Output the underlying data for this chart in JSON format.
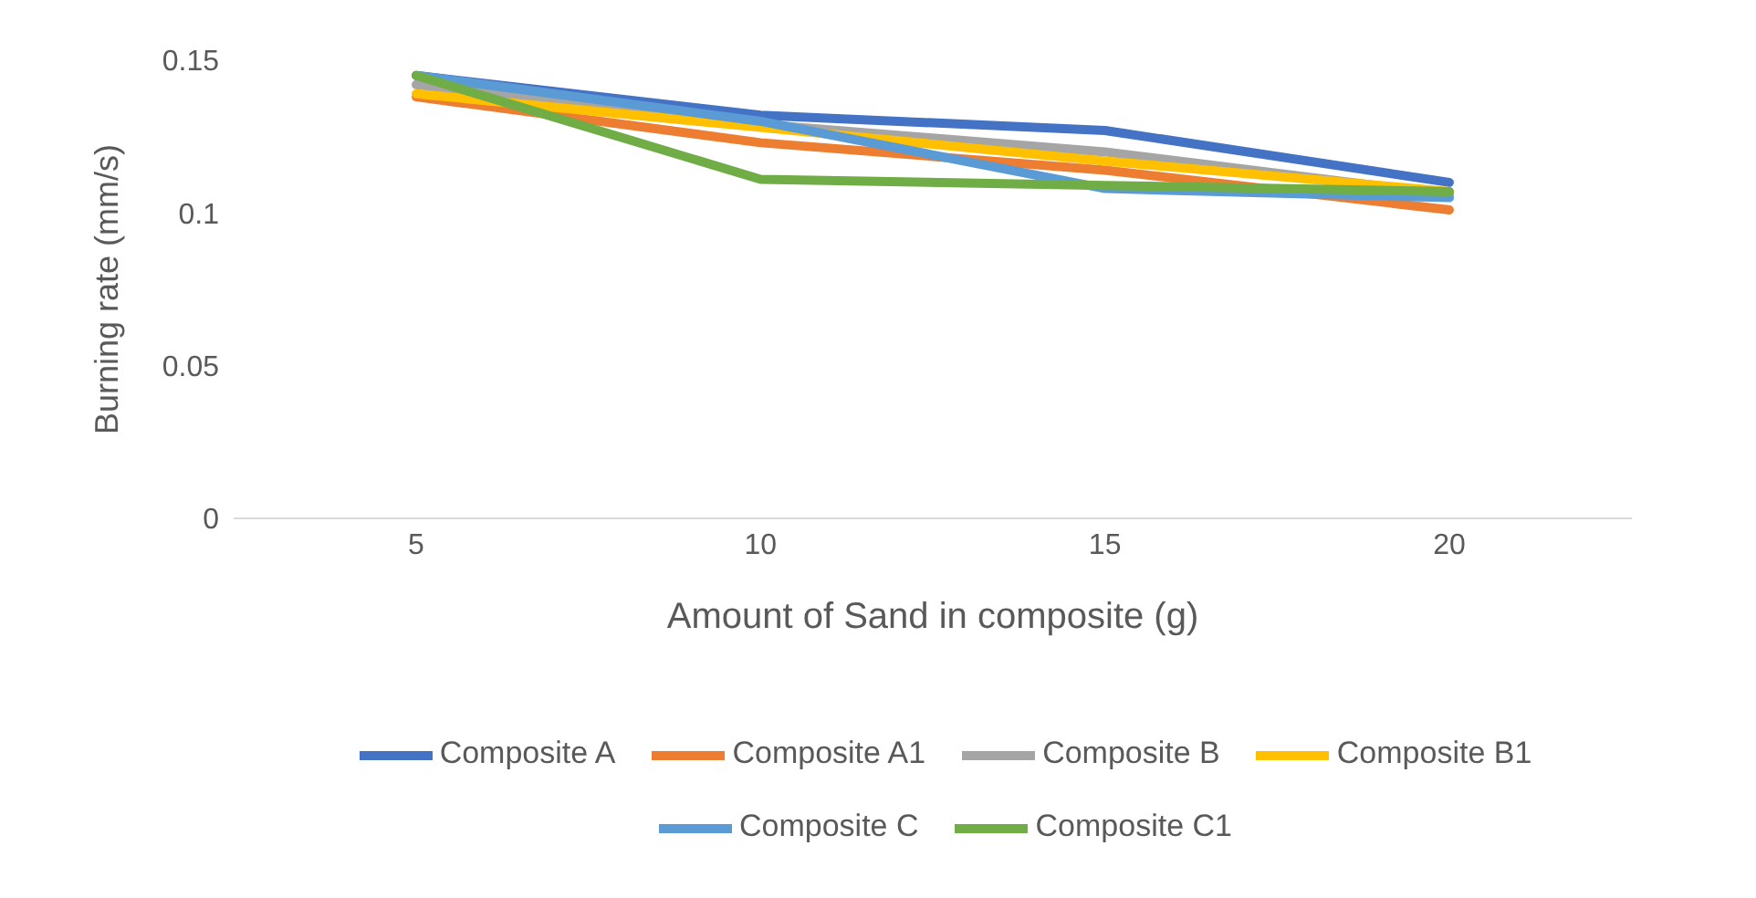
{
  "chart_data": {
    "type": "line",
    "xlabel": "Amount of Sand in composite  (g)",
    "ylabel": "Burning rate (mm/s)",
    "categories": [
      "5",
      "10",
      "15",
      "20"
    ],
    "ylim": [
      0,
      0.15
    ],
    "yticks": [
      0,
      0.05,
      0.1,
      0.15
    ],
    "grid": false,
    "legend": "bottom",
    "marker": "none",
    "line_style": "solid",
    "series": [
      {
        "name": "Composite A",
        "color": "#4472c4",
        "values": [
          0.145,
          0.132,
          0.127,
          0.11
        ]
      },
      {
        "name": "Composite A1",
        "color": "#ed7d31",
        "values": [
          0.138,
          0.123,
          0.114,
          0.101
        ]
      },
      {
        "name": "Composite B",
        "color": "#a5a5a5",
        "values": [
          0.142,
          0.129,
          0.12,
          0.106
        ]
      },
      {
        "name": "Composite B1",
        "color": "#ffc000",
        "values": [
          0.139,
          0.128,
          0.117,
          0.107
        ]
      },
      {
        "name": "Composite C",
        "color": "#5b9bd5",
        "values": [
          0.145,
          0.13,
          0.108,
          0.105
        ]
      },
      {
        "name": "Composite C1",
        "color": "#70ad47",
        "values": [
          0.145,
          0.111,
          0.109,
          0.107
        ]
      }
    ]
  }
}
